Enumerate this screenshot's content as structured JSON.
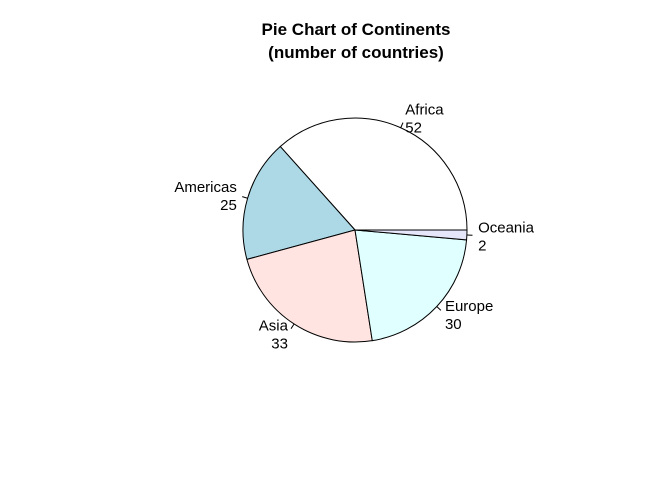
{
  "chart_data": {
    "type": "pie",
    "title": "Pie Chart of Continents",
    "subtitle": "(number of countries)",
    "categories": [
      "Africa",
      "Americas",
      "Asia",
      "Europe",
      "Oceania"
    ],
    "values": [
      52,
      25,
      33,
      30,
      2
    ],
    "colors": [
      "#ffffff",
      "#add8e6",
      "#ffe4e1",
      "#e0ffff",
      "#e6e6fa"
    ],
    "start_angle_deg": 0,
    "direction": "counterclockwise",
    "border_color": "#000000"
  }
}
